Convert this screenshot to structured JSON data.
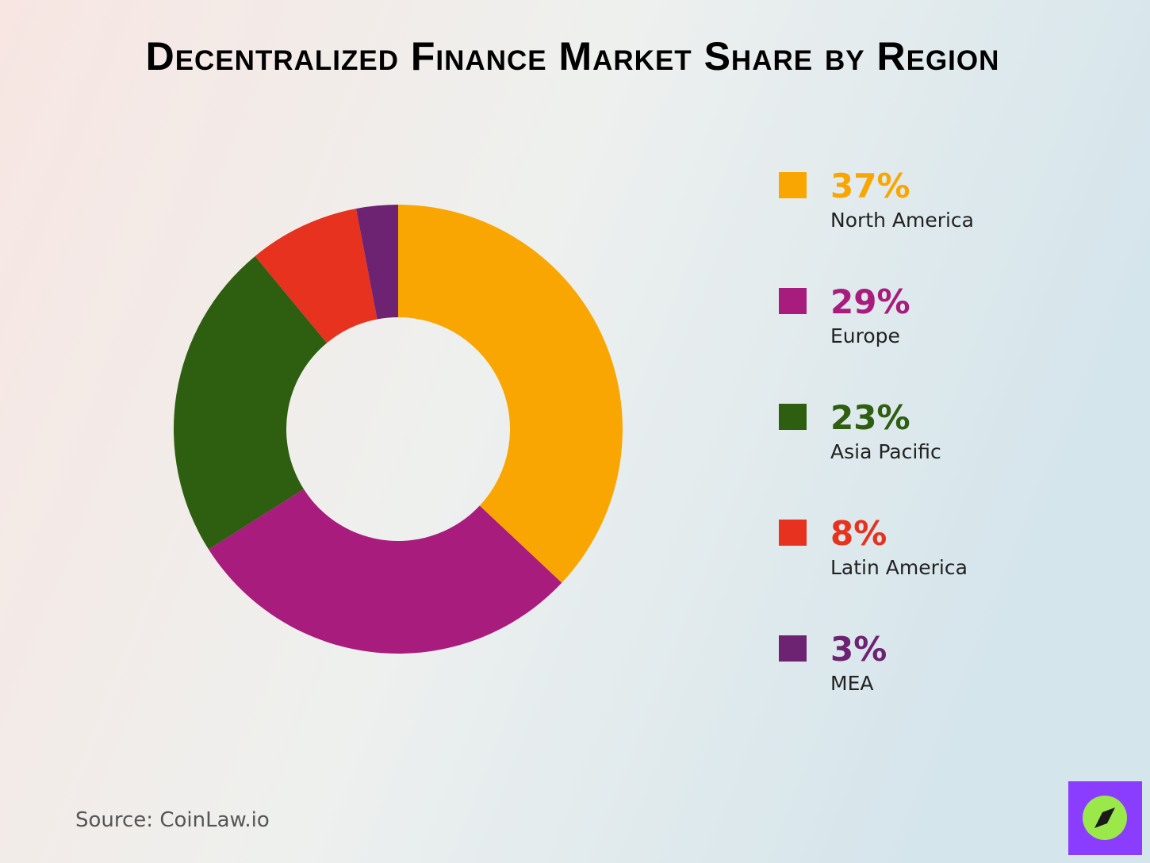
{
  "chart_data": {
    "type": "donut",
    "title": "Decentralized Finance Market Share by Region",
    "categories": [
      "North America",
      "Europe",
      "Asia Pacific",
      "Latin America",
      "MEA"
    ],
    "values": [
      37,
      29,
      23,
      8,
      3
    ],
    "value_labels": [
      "37%",
      "29%",
      "23%",
      "8%",
      "3%"
    ],
    "colors": [
      "#f9a602",
      "#a81c7d",
      "#2e5e0f",
      "#e6321e",
      "#6e2372"
    ],
    "source": "Source: CoinLaw.io"
  }
}
